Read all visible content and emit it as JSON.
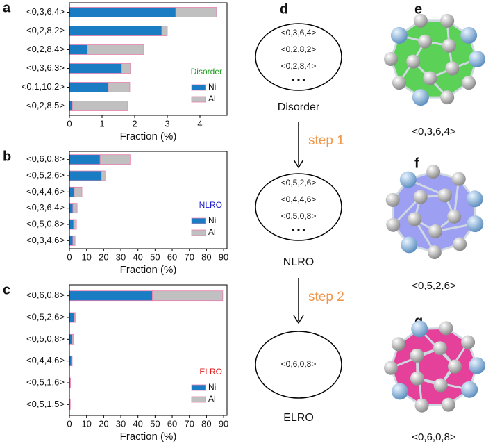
{
  "chart_data": [
    {
      "type": "bar",
      "orientation": "horizontal",
      "stacked": true,
      "panel_label": "a",
      "x_label": "Fraction (%)",
      "categories": [
        "<0,3,6,4>",
        "<0,2,8,2>",
        "<0,2,8,4>",
        "<0,3,6,3>",
        "<0,1,10,2>",
        "<0,2,8,5>"
      ],
      "series": [
        {
          "name": "Ni",
          "color": "#1a7dc4",
          "values": [
            3.26,
            2.83,
            0.55,
            1.6,
            1.19,
            0.09
          ]
        },
        {
          "name": "Al",
          "color": "#c0c0c0",
          "values": [
            1.25,
            0.17,
            1.73,
            0.27,
            0.66,
            1.7
          ]
        }
      ],
      "edgecolor": "#e87fb0",
      "xlim": [
        0,
        4.83
      ],
      "xticks": [
        0,
        1,
        2,
        3,
        4
      ],
      "legend_title": "Disorder",
      "legend_title_color": "#1a9e1a"
    },
    {
      "type": "bar",
      "orientation": "horizontal",
      "stacked": true,
      "panel_label": "b",
      "x_label": "Fraction (%)",
      "categories": [
        "<0,6,0,8>",
        "<0,5,2,6>",
        "<0,4,4,6>",
        "<0,3,6,4>",
        "<0,5,0,8>",
        "<0,3,4,6>"
      ],
      "series": [
        {
          "name": "Ni",
          "color": "#1a7dc4",
          "values": [
            17.9,
            18.7,
            2.8,
            2,
            2.4,
            2
          ]
        },
        {
          "name": "Al",
          "color": "#c0c0c0",
          "values": [
            17.5,
            2.1,
            4.5,
            2.5,
            1.7,
            1.3
          ]
        }
      ],
      "edgecolor": "#e87fb0",
      "xlim": [
        0,
        92
      ],
      "xticks": [
        0,
        10,
        20,
        30,
        40,
        50,
        60,
        70,
        80,
        90
      ],
      "legend_title": "NLRO",
      "legend_title_color": "#1a1acc"
    },
    {
      "type": "bar",
      "orientation": "horizontal",
      "stacked": true,
      "panel_label": "c",
      "x_label": "Fraction (%)",
      "categories": [
        "<0,6,0,8>",
        "<0,5,2,6>",
        "<0,5,0,8>",
        "<0,4,4,6>",
        "<0,5,1,6>",
        "<0,5,1,5>"
      ],
      "series": [
        {
          "name": "Ni",
          "color": "#1a7dc4",
          "values": [
            48.4,
            2.9,
            1.6,
            1.2,
            0.4,
            0.3
          ]
        },
        {
          "name": "Al",
          "color": "#c0c0c0",
          "values": [
            41.1,
            0.8,
            0.8,
            0.4,
            0.2,
            0.2
          ]
        }
      ],
      "edgecolor": "#e87fb0",
      "xlim": [
        0,
        92
      ],
      "xticks": [
        0,
        10,
        20,
        30,
        40,
        50,
        60,
        70,
        80,
        90
      ],
      "legend_title": "ELRO",
      "legend_title_color": "#e01a1a"
    }
  ],
  "diagram": {
    "panel_label": "d",
    "states": [
      {
        "label": "Disorder",
        "motifs": [
          "<0,3,6,4>",
          "<0,2,8,2>",
          "<0,2,8,4>",
          "• • •"
        ]
      },
      {
        "label": "NLRO",
        "motifs": [
          "<0,5,2,6>",
          "<0,4,4,6>",
          "<0,5,0,8>",
          "• • •"
        ]
      },
      {
        "label": "ELRO",
        "motifs": [
          "<0,6,0,8>"
        ]
      }
    ],
    "steps": [
      "step 1",
      "step 2"
    ]
  },
  "clusters": [
    {
      "panel_label": "e",
      "label": "<0,3,6,4>"
    },
    {
      "panel_label": "f",
      "label": "<0,5,2,6>"
    },
    {
      "panel_label": "g",
      "label": "<0,6,0,8>"
    }
  ]
}
